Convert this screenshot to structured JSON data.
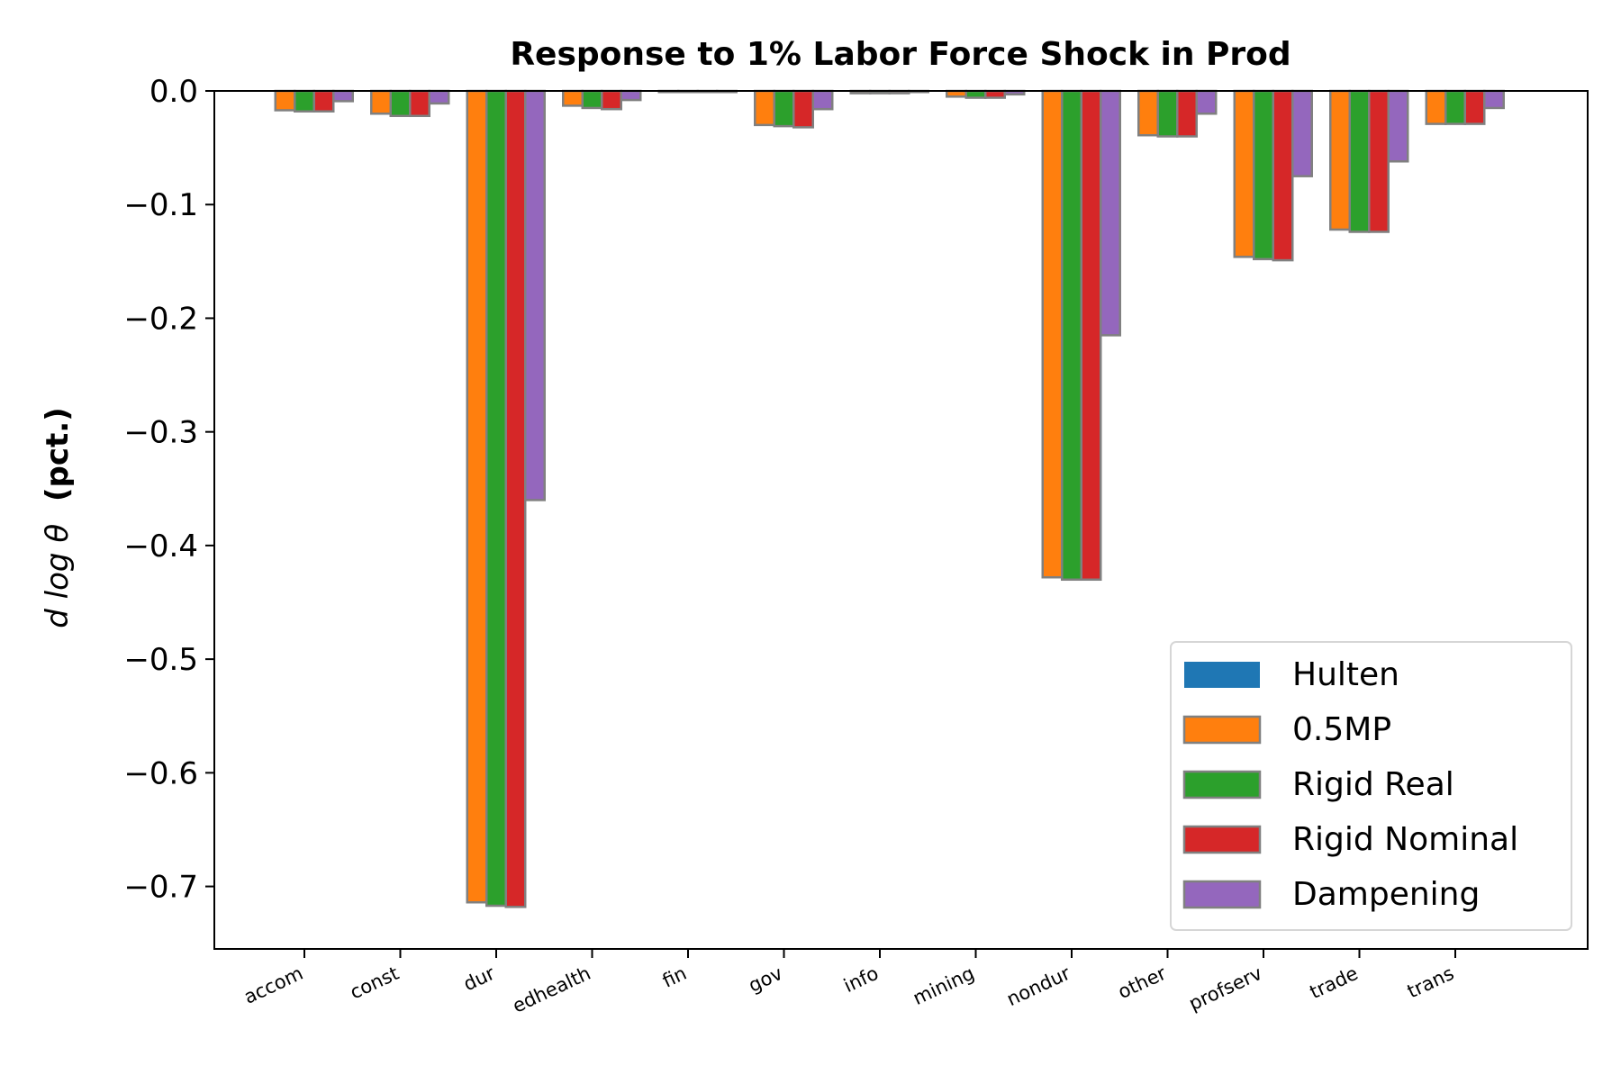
{
  "chart_data": {
    "type": "bar",
    "title": "Response to 1% Labor Force Shock in Prod",
    "ylabel_math": "d log θ",
    "ylabel_suffix": "(pct.)",
    "xlabel": "",
    "ylim": [
      -0.755,
      0.0
    ],
    "yticks": [
      0.0,
      -0.1,
      -0.2,
      -0.3,
      -0.4,
      -0.5,
      -0.6,
      -0.7
    ],
    "ytick_labels": [
      "0.0",
      "−0.1",
      "−0.2",
      "−0.3",
      "−0.4",
      "−0.5",
      "−0.6",
      "−0.7"
    ],
    "grid": false,
    "legend_position": "lower right",
    "categories": [
      "accom",
      "const",
      "dur",
      "edhealth",
      "fin",
      "gov",
      "info",
      "mining",
      "nondur",
      "other",
      "profserv",
      "trade",
      "trans"
    ],
    "series": [
      {
        "name": "Hulten",
        "color": "#1f77b4",
        "values": [
          0,
          0,
          0,
          0,
          0,
          0,
          0,
          0,
          0,
          0,
          0,
          0,
          0
        ]
      },
      {
        "name": "0.5MP",
        "color": "#ff7f0e",
        "values": [
          -0.017,
          -0.02,
          -0.714,
          -0.013,
          -0.001,
          -0.03,
          -0.002,
          -0.005,
          -0.428,
          -0.039,
          -0.146,
          -0.122,
          -0.029
        ]
      },
      {
        "name": "Rigid Real",
        "color": "#2ca02c",
        "values": [
          -0.018,
          -0.022,
          -0.717,
          -0.015,
          -0.001,
          -0.031,
          -0.002,
          -0.006,
          -0.43,
          -0.04,
          -0.148,
          -0.124,
          -0.029
        ]
      },
      {
        "name": "Rigid Nominal",
        "color": "#d62728",
        "values": [
          -0.018,
          -0.022,
          -0.718,
          -0.016,
          -0.001,
          -0.032,
          -0.002,
          -0.006,
          -0.43,
          -0.04,
          -0.149,
          -0.124,
          -0.029
        ]
      },
      {
        "name": "Dampening",
        "color": "#9467bd",
        "values": [
          -0.009,
          -0.011,
          -0.36,
          -0.008,
          -0.001,
          -0.016,
          -0.001,
          -0.003,
          -0.215,
          -0.02,
          -0.075,
          -0.062,
          -0.015
        ]
      }
    ]
  }
}
